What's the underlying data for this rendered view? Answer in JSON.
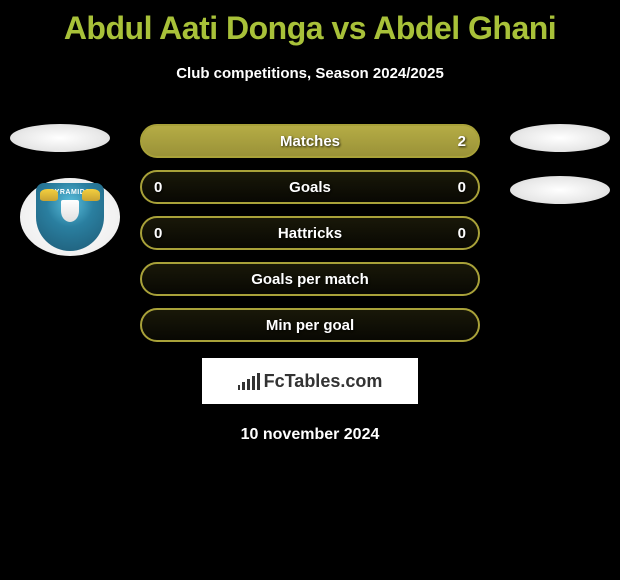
{
  "header": {
    "title": "Abdul Aati Donga vs Abdel Ghani",
    "subtitle": "Club competitions, Season 2024/2025"
  },
  "stats": [
    {
      "label": "Matches",
      "left_value": "",
      "right_value": "2",
      "filled": true
    },
    {
      "label": "Goals",
      "left_value": "0",
      "right_value": "0",
      "filled": false
    },
    {
      "label": "Hattricks",
      "left_value": "0",
      "right_value": "0",
      "filled": false
    },
    {
      "label": "Goals per match",
      "left_value": "",
      "right_value": "",
      "filled": false
    },
    {
      "label": "Min per goal",
      "left_value": "",
      "right_value": "",
      "filled": false
    }
  ],
  "badge": {
    "text": "PYRAMIDS"
  },
  "watermark": {
    "text": "FcTables.com"
  },
  "date": "10 november 2024",
  "colors": {
    "background": "#000000",
    "accent": "#a8c139",
    "bar_border": "#a8a139",
    "text": "#ffffff",
    "badge_blue": "#2a7fa0"
  }
}
